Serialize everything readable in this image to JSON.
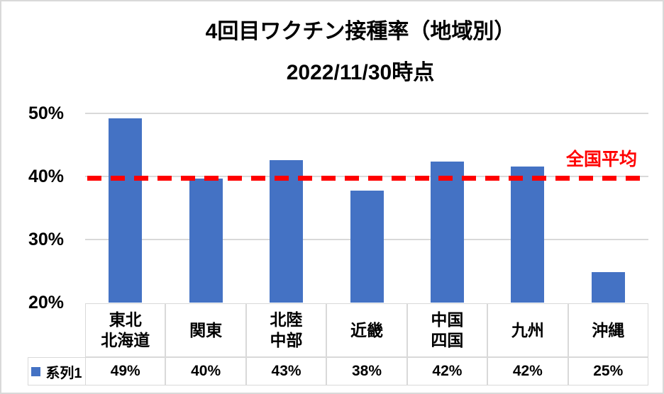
{
  "chart_data": {
    "type": "bar",
    "title": "4回目ワクチン接種率（地域別）",
    "subtitle": "2022/11/30時点",
    "categories": [
      "東北\n北海道",
      "関東",
      "北陸\n中部",
      "近畿",
      "中国\n四国",
      "九州",
      "沖縄"
    ],
    "series": [
      {
        "name": "系列1",
        "values": [
          49,
          40,
          43,
          38,
          42,
          42,
          25
        ],
        "values_precise": [
          49.2,
          39.7,
          42.6,
          37.7,
          42.4,
          41.6,
          24.8
        ],
        "value_labels": [
          "49%",
          "40%",
          "43%",
          "38%",
          "42%",
          "42%",
          "25%"
        ],
        "color": "#4472C4"
      }
    ],
    "reference_line": {
      "label": "全国平均",
      "value": 39.7,
      "color": "#FF0000",
      "style": "dashed"
    },
    "xlabel": "",
    "ylabel": "",
    "ylim": [
      20,
      50
    ],
    "yticks": [
      {
        "value": 50,
        "label": "50%"
      },
      {
        "value": 40,
        "label": "40%"
      },
      {
        "value": 30,
        "label": "30%"
      },
      {
        "value": 20,
        "label": "20%"
      }
    ],
    "grid": true,
    "grid_color": "#D9D9D9",
    "text_color": "#000000",
    "legend_position": "bottom-table"
  }
}
